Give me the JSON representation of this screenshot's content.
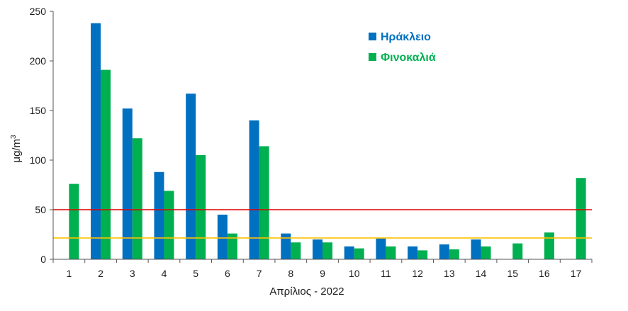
{
  "chart_data": {
    "type": "bar",
    "xlabel": "Απρίλιος - 2022",
    "ylabel": "μg/m",
    "ylabel_superscript": "3",
    "ylim": [
      0,
      250
    ],
    "yticks": [
      0,
      50,
      100,
      150,
      200,
      250
    ],
    "categories": [
      "1",
      "2",
      "3",
      "4",
      "5",
      "6",
      "7",
      "8",
      "9",
      "10",
      "11",
      "12",
      "13",
      "14",
      "15",
      "16",
      "17"
    ],
    "series": [
      {
        "name": "Ηράκλειο",
        "color": "#0070C0",
        "values": [
          null,
          238,
          152,
          88,
          167,
          45,
          140,
          26,
          20,
          13,
          21,
          13,
          15,
          20,
          null,
          null,
          null
        ]
      },
      {
        "name": "Φινοκαλιά",
        "color": "#00B050",
        "values": [
          76,
          191,
          122,
          69,
          105,
          26,
          114,
          17,
          17,
          11,
          13,
          9,
          10,
          13,
          16,
          27,
          82
        ]
      }
    ],
    "reference_lines": [
      {
        "value": 50,
        "color": "#E00000"
      },
      {
        "value": 21.5,
        "color": "#FFC000"
      }
    ],
    "legend_position": "top-right",
    "grid": false
  }
}
